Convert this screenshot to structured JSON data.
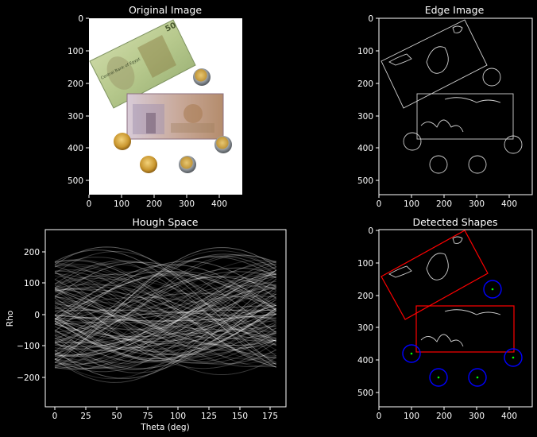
{
  "panels": {
    "original": {
      "title": "Original Image",
      "x_ticks": [
        "0",
        "100",
        "200",
        "300",
        "400"
      ],
      "y_ticks": [
        "0",
        "100",
        "200",
        "300",
        "400",
        "500"
      ],
      "note_50": "50",
      "note_small": "50"
    },
    "edge": {
      "title": "Edge Image",
      "x_ticks": [
        "0",
        "100",
        "200",
        "300",
        "400"
      ],
      "y_ticks": [
        "0",
        "100",
        "200",
        "300",
        "400",
        "500"
      ]
    },
    "hough": {
      "title": "Hough Space",
      "xlabel": "Theta (deg)",
      "ylabel": "Rho",
      "x_ticks": [
        "0",
        "25",
        "50",
        "75",
        "100",
        "125",
        "150",
        "175"
      ],
      "y_ticks": [
        "200",
        "100",
        "0",
        "−100",
        "−200"
      ]
    },
    "detected": {
      "title": "Detected Shapes",
      "x_ticks": [
        "0",
        "100",
        "200",
        "300",
        "400"
      ],
      "y_ticks": [
        "0",
        "100",
        "200",
        "300",
        "400",
        "500"
      ]
    }
  },
  "colors": {
    "background": "#000000",
    "axes_text": "#ffffff",
    "rect_outline": "#ff0000",
    "circle_outline": "#0000ff",
    "center_mark": "#00ff00"
  }
}
